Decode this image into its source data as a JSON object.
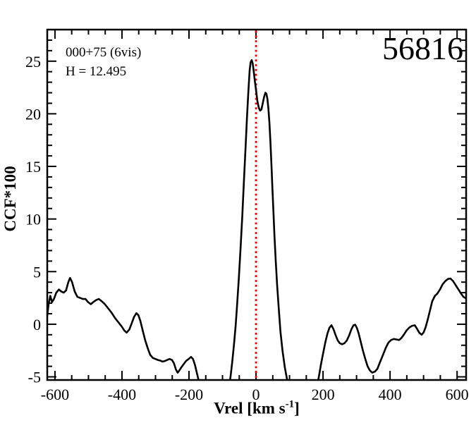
{
  "annotations": {
    "target_label": "000+75 (6vis)",
    "h_magnitude": "H = 12.495",
    "mjd": "56816"
  },
  "chart_data": {
    "type": "line",
    "title": "",
    "xlabel_main": "Vrel [km s",
    "xlabel_sup": "-1",
    "xlabel_close": "]",
    "ylabel": "CCF*100",
    "xlim": [
      -623,
      627
    ],
    "ylim": [
      -5.3,
      28.0
    ],
    "x_major_ticks": [
      -600,
      -400,
      -200,
      0,
      200,
      400,
      600
    ],
    "x_minor_step": 50,
    "y_major_ticks": [
      -5,
      0,
      5,
      10,
      15,
      20,
      25
    ],
    "y_minor_step": 1,
    "grid": false,
    "legend": false,
    "ref_line": {
      "x": 0,
      "color": "#ee0000",
      "style": "dotted"
    },
    "line_color": "#000000",
    "series": [
      {
        "name": "CCF",
        "points": [
          [
            -623,
            0.8
          ],
          [
            -619,
            1.9
          ],
          [
            -614,
            2.7
          ],
          [
            -609,
            2.1
          ],
          [
            -603,
            2.4
          ],
          [
            -596,
            3.0
          ],
          [
            -588,
            3.3
          ],
          [
            -581,
            3.1
          ],
          [
            -574,
            3.0
          ],
          [
            -567,
            3.2
          ],
          [
            -560,
            4.0
          ],
          [
            -555,
            4.4
          ],
          [
            -549,
            4.0
          ],
          [
            -541,
            3.1
          ],
          [
            -533,
            2.6
          ],
          [
            -525,
            2.5
          ],
          [
            -517,
            2.4
          ],
          [
            -509,
            2.4
          ],
          [
            -501,
            2.1
          ],
          [
            -493,
            1.9
          ],
          [
            -486,
            2.1
          ],
          [
            -477,
            2.3
          ],
          [
            -469,
            2.4
          ],
          [
            -461,
            2.2
          ],
          [
            -451,
            1.9
          ],
          [
            -441,
            1.5
          ],
          [
            -431,
            1.1
          ],
          [
            -421,
            0.6
          ],
          [
            -411,
            0.2
          ],
          [
            -401,
            -0.2
          ],
          [
            -393,
            -0.6
          ],
          [
            -386,
            -0.8
          ],
          [
            -378,
            -0.5
          ],
          [
            -371,
            0.1
          ],
          [
            -364,
            0.7
          ],
          [
            -357,
            1.05
          ],
          [
            -351,
            0.85
          ],
          [
            -345,
            0.3
          ],
          [
            -338,
            -0.6
          ],
          [
            -331,
            -1.5
          ],
          [
            -323,
            -2.3
          ],
          [
            -316,
            -2.9
          ],
          [
            -308,
            -3.2
          ],
          [
            -300,
            -3.3
          ],
          [
            -293,
            -3.4
          ],
          [
            -286,
            -3.45
          ],
          [
            -279,
            -3.55
          ],
          [
            -272,
            -3.5
          ],
          [
            -265,
            -3.4
          ],
          [
            -258,
            -3.3
          ],
          [
            -251,
            -3.4
          ],
          [
            -245,
            -3.7
          ],
          [
            -239,
            -4.3
          ],
          [
            -234,
            -4.6
          ],
          [
            -229,
            -4.4
          ],
          [
            -223,
            -4.1
          ],
          [
            -216,
            -3.8
          ],
          [
            -209,
            -3.5
          ],
          [
            -201,
            -3.3
          ],
          [
            -194,
            -3.1
          ],
          [
            -188,
            -3.3
          ],
          [
            -182,
            -3.9
          ],
          [
            -176,
            -4.7
          ],
          [
            -170,
            -5.5
          ],
          [
            -160,
            -7.0
          ],
          [
            -140,
            -8.5
          ],
          [
            -100,
            -8.5
          ],
          [
            -83,
            -6.5
          ],
          [
            -76,
            -5.0
          ],
          [
            -71,
            -3.6
          ],
          [
            -66,
            -2.0
          ],
          [
            -61,
            -0.2
          ],
          [
            -56,
            2.0
          ],
          [
            -51,
            4.5
          ],
          [
            -46,
            7.3
          ],
          [
            -41,
            10.3
          ],
          [
            -36,
            13.6
          ],
          [
            -31,
            16.9
          ],
          [
            -27,
            19.6
          ],
          [
            -23,
            22.0
          ],
          [
            -19,
            24.1
          ],
          [
            -16,
            24.9
          ],
          [
            -13,
            25.1
          ],
          [
            -10,
            24.8
          ],
          [
            -7,
            24.1
          ],
          [
            -3,
            23.0
          ],
          [
            0,
            22.3
          ],
          [
            4,
            21.2
          ],
          [
            8,
            20.6
          ],
          [
            12,
            20.3
          ],
          [
            16,
            20.4
          ],
          [
            20,
            21.0
          ],
          [
            24,
            21.6
          ],
          [
            28,
            22.0
          ],
          [
            31,
            21.9
          ],
          [
            34,
            21.4
          ],
          [
            37,
            20.5
          ],
          [
            40,
            19.1
          ],
          [
            43,
            17.3
          ],
          [
            46,
            15.2
          ],
          [
            49,
            12.9
          ],
          [
            52,
            10.6
          ],
          [
            55,
            8.4
          ],
          [
            59,
            5.9
          ],
          [
            63,
            3.7
          ],
          [
            68,
            1.4
          ],
          [
            73,
            -0.7
          ],
          [
            79,
            -2.5
          ],
          [
            86,
            -4.1
          ],
          [
            93,
            -5.3
          ],
          [
            100,
            -7.0
          ],
          [
            115,
            -8.5
          ],
          [
            160,
            -8.5
          ],
          [
            180,
            -6.3
          ],
          [
            188,
            -4.9
          ],
          [
            194,
            -3.8
          ],
          [
            200,
            -2.8
          ],
          [
            207,
            -1.7
          ],
          [
            213,
            -0.9
          ],
          [
            219,
            -0.35
          ],
          [
            225,
            -0.1
          ],
          [
            231,
            -0.45
          ],
          [
            237,
            -1.0
          ],
          [
            244,
            -1.55
          ],
          [
            250,
            -1.8
          ],
          [
            257,
            -1.9
          ],
          [
            264,
            -1.8
          ],
          [
            271,
            -1.55
          ],
          [
            278,
            -1.05
          ],
          [
            285,
            -0.45
          ],
          [
            291,
            -0.1
          ],
          [
            296,
            -0.05
          ],
          [
            301,
            -0.35
          ],
          [
            306,
            -0.85
          ],
          [
            312,
            -1.6
          ],
          [
            319,
            -2.5
          ],
          [
            326,
            -3.3
          ],
          [
            333,
            -4.0
          ],
          [
            340,
            -4.4
          ],
          [
            347,
            -4.6
          ],
          [
            355,
            -4.5
          ],
          [
            362,
            -4.25
          ],
          [
            370,
            -3.6
          ],
          [
            379,
            -2.9
          ],
          [
            387,
            -2.25
          ],
          [
            395,
            -1.75
          ],
          [
            403,
            -1.5
          ],
          [
            411,
            -1.4
          ],
          [
            419,
            -1.45
          ],
          [
            427,
            -1.5
          ],
          [
            434,
            -1.3
          ],
          [
            441,
            -1.0
          ],
          [
            449,
            -0.6
          ],
          [
            458,
            -0.3
          ],
          [
            466,
            -0.15
          ],
          [
            474,
            -0.1
          ],
          [
            480,
            -0.4
          ],
          [
            487,
            -0.8
          ],
          [
            494,
            -1.0
          ],
          [
            500,
            -0.8
          ],
          [
            506,
            -0.3
          ],
          [
            512,
            0.4
          ],
          [
            519,
            1.3
          ],
          [
            526,
            2.2
          ],
          [
            534,
            2.7
          ],
          [
            541,
            2.9
          ],
          [
            549,
            3.3
          ],
          [
            557,
            3.8
          ],
          [
            565,
            4.1
          ],
          [
            573,
            4.3
          ],
          [
            580,
            4.35
          ],
          [
            588,
            4.1
          ],
          [
            596,
            3.7
          ],
          [
            604,
            3.3
          ],
          [
            612,
            2.9
          ],
          [
            619,
            2.6
          ],
          [
            627,
            2.45
          ]
        ]
      }
    ]
  }
}
